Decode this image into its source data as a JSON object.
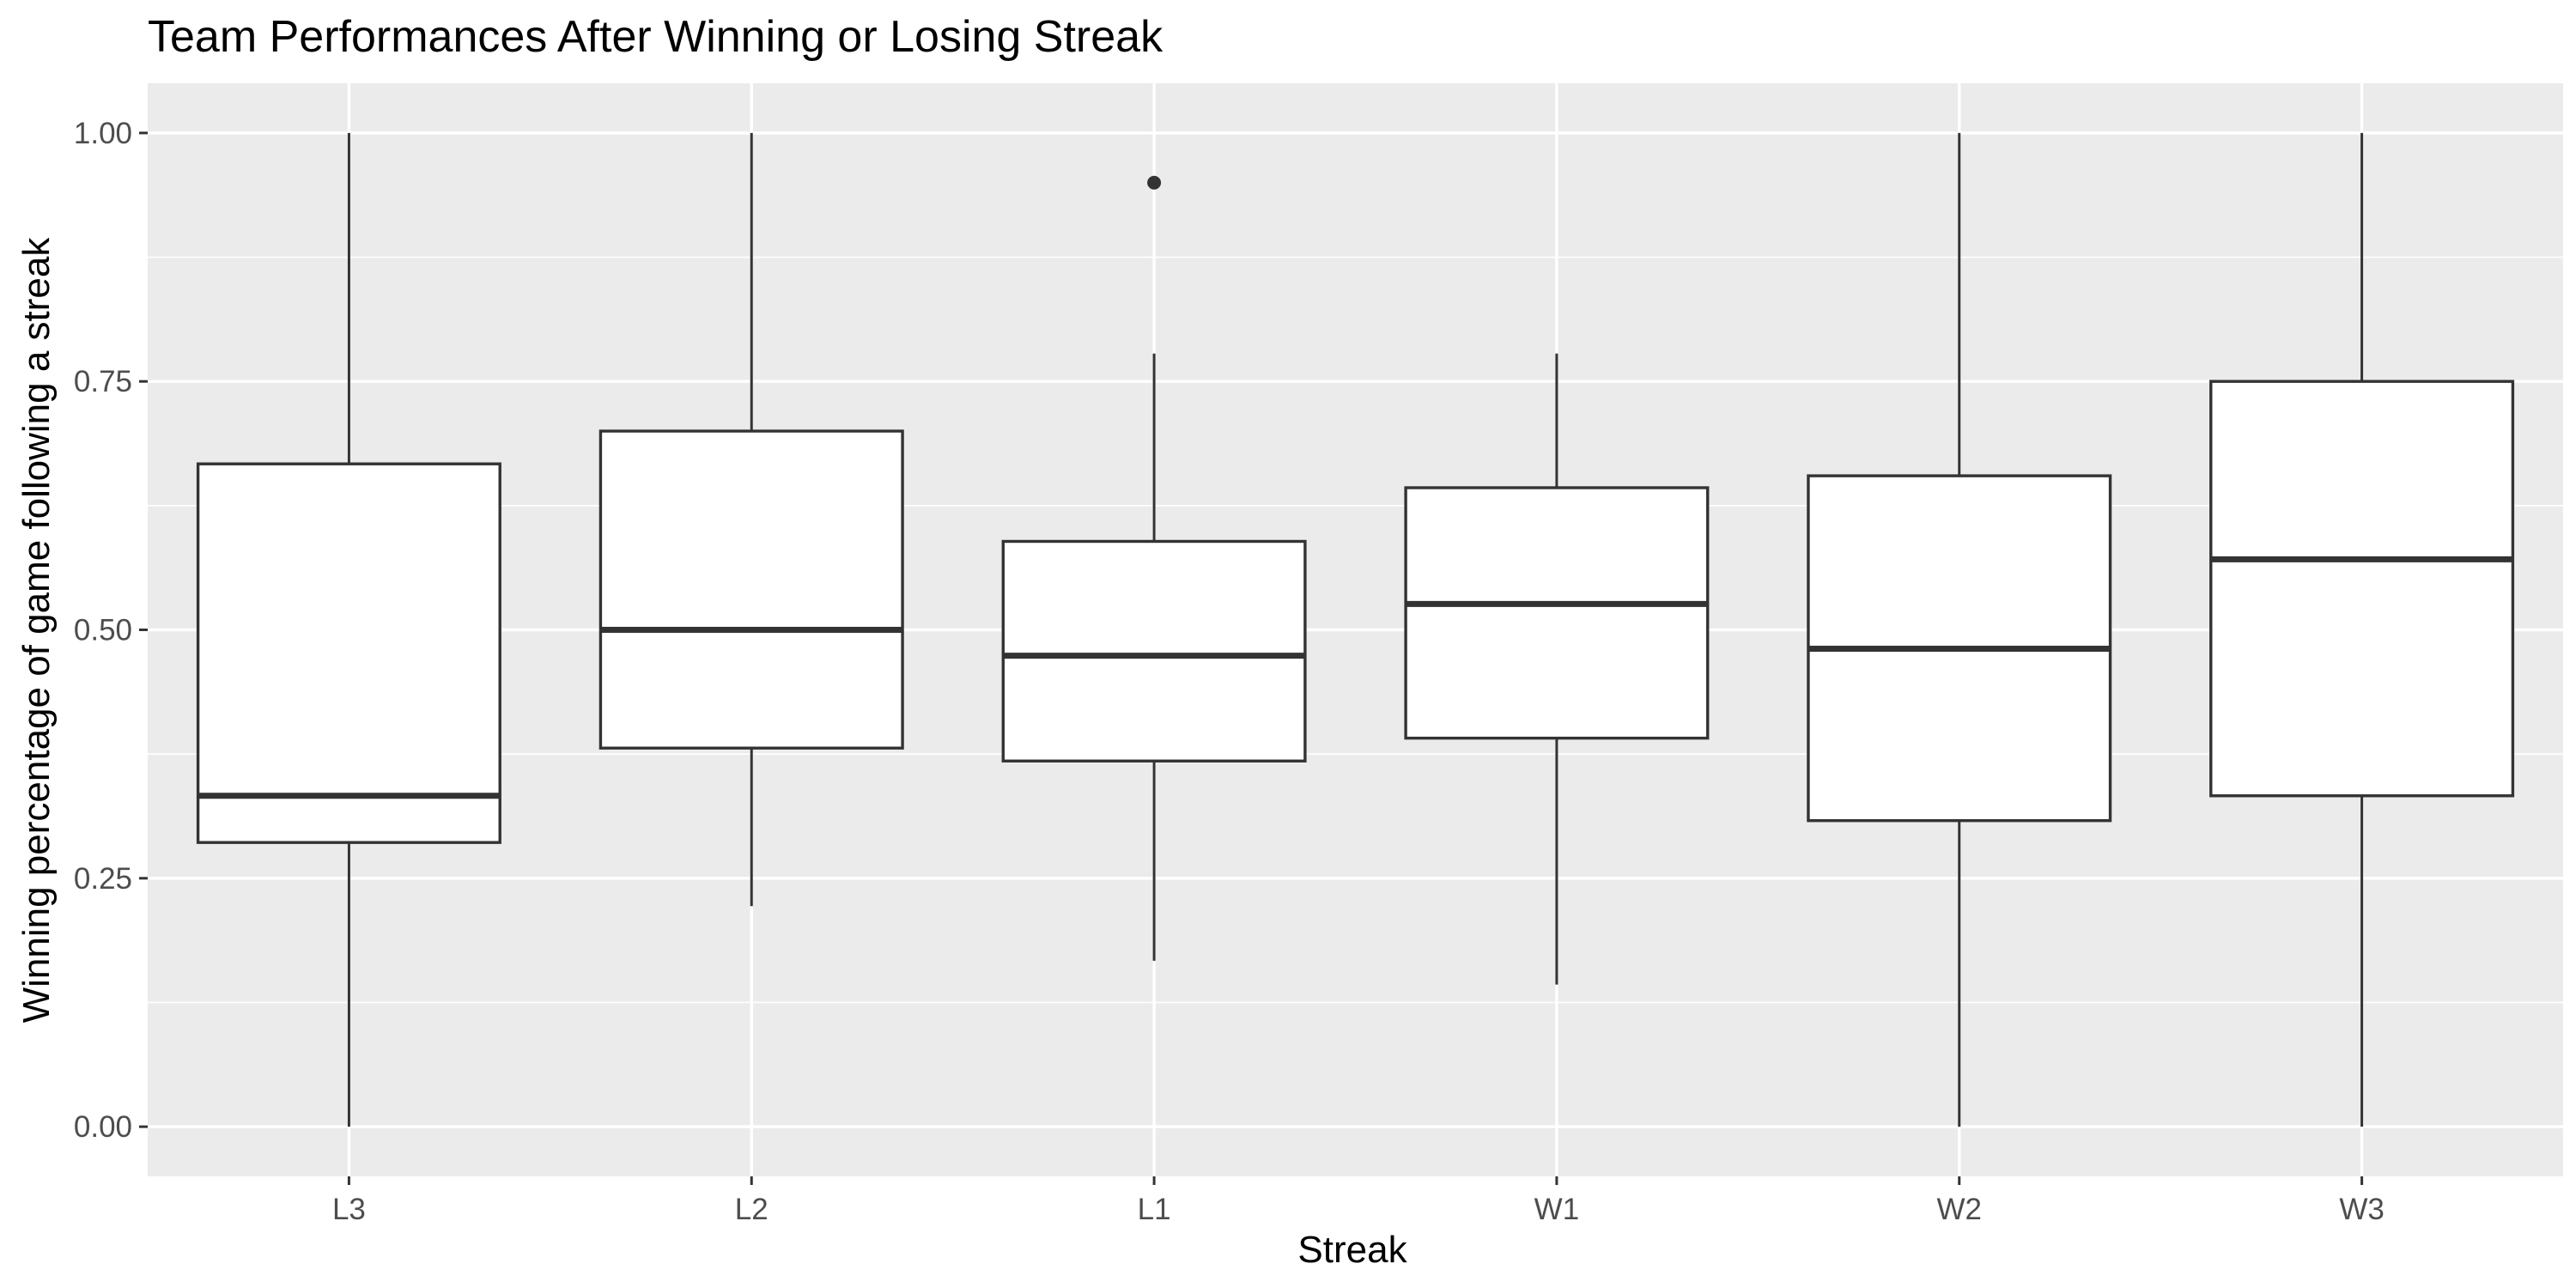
{
  "chart_data": {
    "type": "boxplot",
    "title": "Team Performances After Winning or Losing Streak",
    "xlabel": "Streak",
    "ylabel": "Winning percentage of game following a streak",
    "categories": [
      "L3",
      "L2",
      "L1",
      "W1",
      "W2",
      "W3"
    ],
    "ylim": [
      -0.05,
      1.05
    ],
    "yticks": [
      0.0,
      0.25,
      0.5,
      0.75,
      1.0
    ],
    "ytick_labels": [
      "0.00",
      "0.25",
      "0.50",
      "0.75",
      "1.00"
    ],
    "grid": true,
    "boxes": [
      {
        "category": "L3",
        "min": 0.0,
        "q1": 0.286,
        "median": 0.333,
        "q3": 0.667,
        "max": 1.0,
        "outliers": []
      },
      {
        "category": "L2",
        "min": 0.222,
        "q1": 0.381,
        "median": 0.5,
        "q3": 0.7,
        "max": 1.0,
        "outliers": []
      },
      {
        "category": "L1",
        "min": 0.167,
        "q1": 0.368,
        "median": 0.474,
        "q3": 0.589,
        "max": 0.778,
        "outliers": [
          0.95
        ]
      },
      {
        "category": "W1",
        "min": 0.143,
        "q1": 0.391,
        "median": 0.526,
        "q3": 0.643,
        "max": 0.778,
        "outliers": []
      },
      {
        "category": "W2",
        "min": 0.0,
        "q1": 0.308,
        "median": 0.481,
        "q3": 0.655,
        "max": 1.0,
        "outliers": []
      },
      {
        "category": "W3",
        "min": 0.0,
        "q1": 0.333,
        "median": 0.571,
        "q3": 0.75,
        "max": 1.0,
        "outliers": []
      }
    ],
    "colors": {
      "panel_background": "#ebebeb",
      "grid_major": "#ffffff",
      "box_fill": "#ffffff",
      "box_stroke": "#333333"
    }
  }
}
